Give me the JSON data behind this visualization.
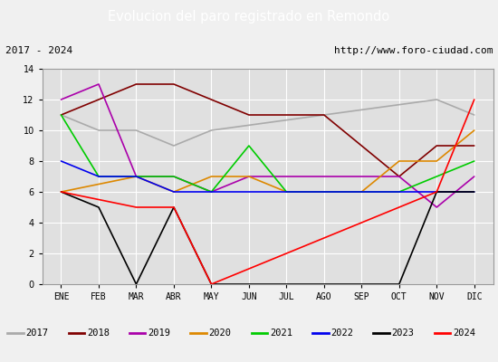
{
  "title": "Evolucion del paro registrado en Remondo",
  "subtitle_left": "2017 - 2024",
  "subtitle_right": "http://www.foro-ciudad.com",
  "months": [
    "ENE",
    "FEB",
    "MAR",
    "ABR",
    "MAY",
    "JUN",
    "JUL",
    "AGO",
    "SEP",
    "OCT",
    "NOV",
    "DIC"
  ],
  "series_order": [
    "2017",
    "2018",
    "2019",
    "2020",
    "2021",
    "2022",
    "2023",
    "2024"
  ],
  "colors": {
    "2017": "#aaaaaa",
    "2018": "#800000",
    "2019": "#aa00aa",
    "2020": "#dd8800",
    "2021": "#00cc00",
    "2022": "#0000ee",
    "2023": "#000000",
    "2024": "#ff0000"
  },
  "data": {
    "2017": [
      11,
      10,
      10,
      9,
      10,
      null,
      null,
      null,
      null,
      null,
      12,
      11
    ],
    "2018": [
      11,
      12,
      13,
      13,
      12,
      11,
      11,
      11,
      9,
      7,
      9,
      9
    ],
    "2019": [
      12,
      13,
      7,
      7,
      6,
      7,
      7,
      7,
      7,
      7,
      5,
      7
    ],
    "2020": [
      6,
      null,
      7,
      6,
      7,
      7,
      6,
      6,
      6,
      8,
      8,
      10
    ],
    "2021": [
      11,
      7,
      7,
      7,
      6,
      9,
      6,
      6,
      6,
      6,
      7,
      8
    ],
    "2022": [
      8,
      7,
      7,
      6,
      6,
      6,
      6,
      6,
      6,
      6,
      6,
      6
    ],
    "2023": [
      6,
      5,
      0,
      5,
      0,
      null,
      null,
      null,
      null,
      0,
      6,
      6
    ],
    "2024": [
      6,
      null,
      5,
      5,
      0,
      null,
      null,
      null,
      null,
      null,
      6,
      12
    ]
  },
  "ylim": [
    0,
    14
  ],
  "yticks": [
    0,
    2,
    4,
    6,
    8,
    10,
    12,
    14
  ],
  "title_bg": "#4080c0",
  "title_color": "white",
  "subtitle_bg": "#f0f0f0",
  "plot_bg": "#e0e0e0",
  "grid_color": "white",
  "legend_bg": "#f0f0f0"
}
